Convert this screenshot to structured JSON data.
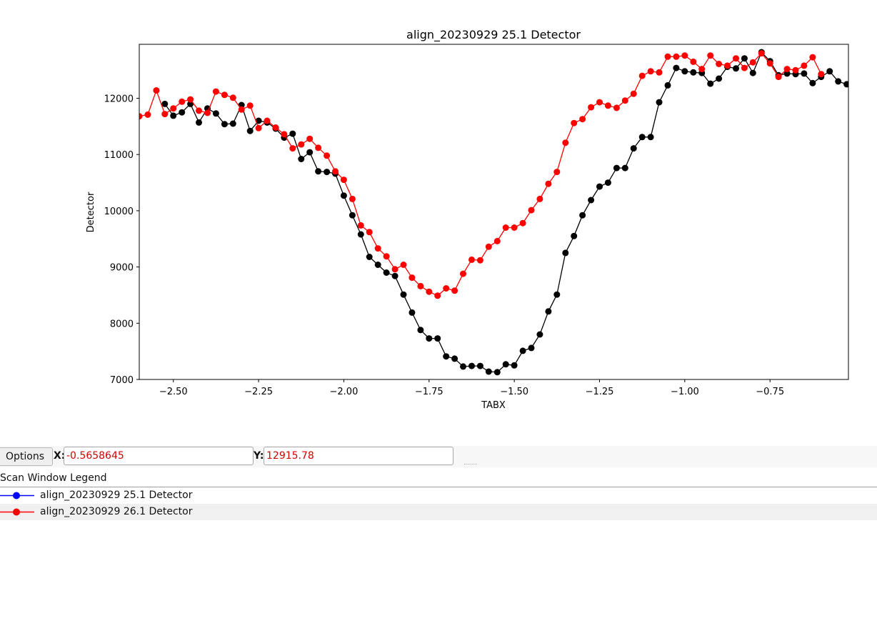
{
  "chart_data": {
    "type": "line",
    "title": "align_20230929 25.1 Detector",
    "xlabel": "TABX",
    "ylabel": "Detector",
    "xlim": [
      -2.6,
      -0.52
    ],
    "ylim": [
      7000,
      12960
    ],
    "xticks": [
      -2.5,
      -2.25,
      -2.0,
      -1.75,
      -1.5,
      -1.25,
      -1.0,
      -0.75
    ],
    "xtick_labels": [
      "−2.50",
      "−2.25",
      "−2.00",
      "−1.75",
      "−1.50",
      "−1.25",
      "−1.00",
      "−0.75"
    ],
    "yticks": [
      7000,
      8000,
      9000,
      10000,
      11000,
      12000
    ],
    "ytick_labels": [
      "7000",
      "8000",
      "9000",
      "10000",
      "11000",
      "12000"
    ],
    "grid": false,
    "series": [
      {
        "color": "#000000",
        "marker": "o",
        "x": [
          -2.525,
          -2.5,
          -2.475,
          -2.45,
          -2.425,
          -2.4,
          -2.375,
          -2.35,
          -2.325,
          -2.3,
          -2.275,
          -2.25,
          -2.225,
          -2.2,
          -2.175,
          -2.15,
          -2.125,
          -2.1,
          -2.075,
          -2.05,
          -2.025,
          -2.0,
          -1.975,
          -1.95,
          -1.925,
          -1.9,
          -1.875,
          -1.85,
          -1.825,
          -1.8,
          -1.775,
          -1.75,
          -1.725,
          -1.7,
          -1.675,
          -1.65,
          -1.625,
          -1.6,
          -1.575,
          -1.55,
          -1.525,
          -1.5,
          -1.475,
          -1.45,
          -1.425,
          -1.4,
          -1.375,
          -1.35,
          -1.325,
          -1.3,
          -1.275,
          -1.25,
          -1.225,
          -1.2,
          -1.175,
          -1.15,
          -1.125,
          -1.1,
          -1.075,
          -1.05,
          -1.025,
          -1.0,
          -0.975,
          -0.95,
          -0.925,
          -0.9,
          -0.875,
          -0.85,
          -0.825,
          -0.8,
          -0.775,
          -0.75,
          -0.725,
          -0.7,
          -0.675,
          -0.65,
          -0.625,
          -0.6,
          -0.575,
          -0.55,
          -0.525
        ],
        "y": [
          11900,
          11690,
          11750,
          11900,
          11570,
          11820,
          11730,
          11540,
          11550,
          11880,
          11420,
          11600,
          11570,
          11460,
          11300,
          11370,
          10920,
          11040,
          10700,
          10690,
          10660,
          10270,
          9920,
          9580,
          9180,
          9040,
          8900,
          8840,
          8510,
          8190,
          7880,
          7730,
          7730,
          7410,
          7370,
          7230,
          7240,
          7240,
          7140,
          7130,
          7270,
          7250,
          7510,
          7560,
          7800,
          8210,
          8510,
          9250,
          9550,
          9920,
          10190,
          10430,
          10500,
          10760,
          10760,
          11110,
          11310,
          11310,
          11930,
          12230,
          12540,
          12480,
          12460,
          12450,
          12260,
          12350,
          12560,
          12530,
          12710,
          12450,
          12820,
          12660,
          12410,
          12440,
          12430,
          12440,
          12270,
          12380,
          12480,
          12300,
          12250
        ]
      },
      {
        "color": "#ff0000",
        "marker": "o",
        "x": [
          -2.6,
          -2.575,
          -2.55,
          -2.525,
          -2.5,
          -2.475,
          -2.45,
          -2.425,
          -2.4,
          -2.375,
          -2.35,
          -2.325,
          -2.3,
          -2.275,
          -2.25,
          -2.225,
          -2.2,
          -2.175,
          -2.15,
          -2.125,
          -2.1,
          -2.075,
          -2.05,
          -2.025,
          -2.0,
          -1.975,
          -1.95,
          -1.925,
          -1.9,
          -1.875,
          -1.85,
          -1.825,
          -1.8,
          -1.775,
          -1.75,
          -1.725,
          -1.7,
          -1.675,
          -1.65,
          -1.625,
          -1.6,
          -1.575,
          -1.55,
          -1.525,
          -1.5,
          -1.475,
          -1.45,
          -1.425,
          -1.4,
          -1.375,
          -1.35,
          -1.325,
          -1.3,
          -1.275,
          -1.25,
          -1.225,
          -1.2,
          -1.175,
          -1.15,
          -1.125,
          -1.1,
          -1.075,
          -1.05,
          -1.025,
          -1.0,
          -0.975,
          -0.95,
          -0.925,
          -0.9,
          -0.875,
          -0.85,
          -0.825,
          -0.8,
          -0.775,
          -0.75,
          -0.725,
          -0.7,
          -0.675,
          -0.65,
          -0.625,
          -0.6
        ],
        "y": [
          11680,
          11710,
          12140,
          11720,
          11820,
          11940,
          11980,
          11780,
          11740,
          12120,
          12060,
          12010,
          11800,
          11870,
          11470,
          11600,
          11480,
          11360,
          11110,
          11180,
          11280,
          11120,
          10980,
          10700,
          10550,
          10210,
          9740,
          9620,
          9330,
          9190,
          8960,
          9040,
          8810,
          8660,
          8560,
          8490,
          8620,
          8580,
          8880,
          9130,
          9120,
          9360,
          9460,
          9700,
          9700,
          9780,
          10010,
          10210,
          10480,
          10690,
          11210,
          11560,
          11630,
          11840,
          11930,
          11870,
          11830,
          11960,
          12080,
          12400,
          12480,
          12460,
          12740,
          12740,
          12760,
          12650,
          12520,
          12760,
          12610,
          12580,
          12710,
          12540,
          12640,
          12800,
          12620,
          12380,
          12520,
          12500,
          12580,
          12730,
          12430
        ]
      }
    ]
  },
  "toolbar": {
    "options_label": "Options",
    "x_label": "X:",
    "x_value": "-0.5658645",
    "y_label": "Y:",
    "y_value": "12915.78"
  },
  "legend": {
    "title": "Scan Window Legend",
    "entries": [
      {
        "label": "align_20230929 25.1 Detector",
        "color": "#0000ff"
      },
      {
        "label": "align_20230929 26.1 Detector",
        "color": "#ff0000"
      }
    ]
  }
}
